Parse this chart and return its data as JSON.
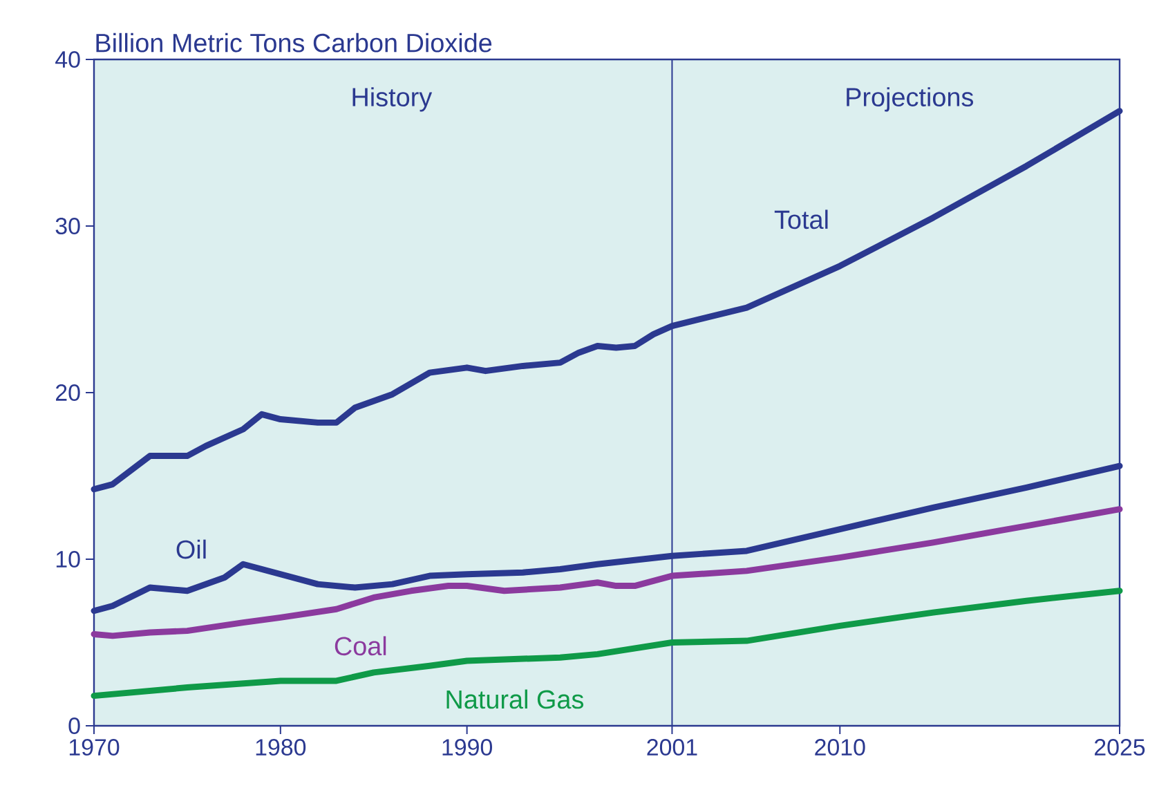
{
  "chart_data": {
    "type": "line",
    "ylabel": "Billion Metric Tons Carbon Dioxide",
    "annotations": [
      "History",
      "Projections"
    ],
    "xlim": [
      1970,
      2025
    ],
    "ylim": [
      0,
      40
    ],
    "xticks": [
      1970,
      1980,
      1990,
      2001,
      2010,
      2025
    ],
    "yticks": [
      0,
      10,
      20,
      30,
      40
    ],
    "grid": false,
    "marker": "none",
    "line_style": "solid",
    "ref_lines": [
      {
        "axis": "x",
        "value": 2001,
        "color": "#2b3990"
      }
    ],
    "series": [
      {
        "name": "Total",
        "color": "#2b3990",
        "x": [
          1970,
          1971,
          1973,
          1975,
          1976,
          1978,
          1979,
          1980,
          1982,
          1983,
          1984,
          1986,
          1988,
          1990,
          1991,
          1993,
          1995,
          1996,
          1997,
          1998,
          1999,
          2000,
          2001,
          2005,
          2010,
          2015,
          2020,
          2025
        ],
        "values": [
          14.2,
          14.5,
          16.2,
          16.2,
          16.8,
          17.8,
          18.7,
          18.4,
          18.2,
          18.2,
          19.1,
          19.9,
          21.2,
          21.5,
          21.3,
          21.6,
          21.8,
          22.4,
          22.8,
          22.7,
          22.8,
          23.5,
          24.0,
          25.1,
          27.6,
          30.5,
          33.6,
          36.9
        ]
      },
      {
        "name": "Oil",
        "color": "#2b3990",
        "x": [
          1970,
          1971,
          1973,
          1975,
          1977,
          1978,
          1980,
          1982,
          1984,
          1986,
          1988,
          1990,
          1993,
          1995,
          1997,
          2001,
          2005,
          2010,
          2015,
          2020,
          2025
        ],
        "values": [
          6.9,
          7.2,
          8.3,
          8.1,
          8.9,
          9.7,
          9.1,
          8.5,
          8.3,
          8.5,
          9.0,
          9.1,
          9.2,
          9.4,
          9.7,
          10.2,
          10.5,
          11.8,
          13.1,
          14.3,
          15.6
        ]
      },
      {
        "name": "Coal",
        "color": "#8b3a9e",
        "x": [
          1970,
          1971,
          1973,
          1975,
          1978,
          1980,
          1983,
          1985,
          1987,
          1989,
          1990,
          1992,
          1995,
          1997,
          1998,
          1999,
          2001,
          2005,
          2010,
          2015,
          2020,
          2025
        ],
        "values": [
          5.5,
          5.4,
          5.6,
          5.7,
          6.2,
          6.5,
          7.0,
          7.7,
          8.1,
          8.4,
          8.4,
          8.1,
          8.3,
          8.6,
          8.4,
          8.4,
          9.0,
          9.3,
          10.1,
          11.0,
          12.0,
          13.0
        ]
      },
      {
        "name": "Natural Gas",
        "color": "#0f9a48",
        "x": [
          1970,
          1975,
          1980,
          1983,
          1985,
          1988,
          1990,
          1995,
          1997,
          2001,
          2005,
          2010,
          2015,
          2020,
          2025
        ],
        "values": [
          1.8,
          2.3,
          2.7,
          2.7,
          3.2,
          3.6,
          3.9,
          4.1,
          4.3,
          5.0,
          5.1,
          6.0,
          6.8,
          7.5,
          8.1
        ]
      }
    ]
  }
}
